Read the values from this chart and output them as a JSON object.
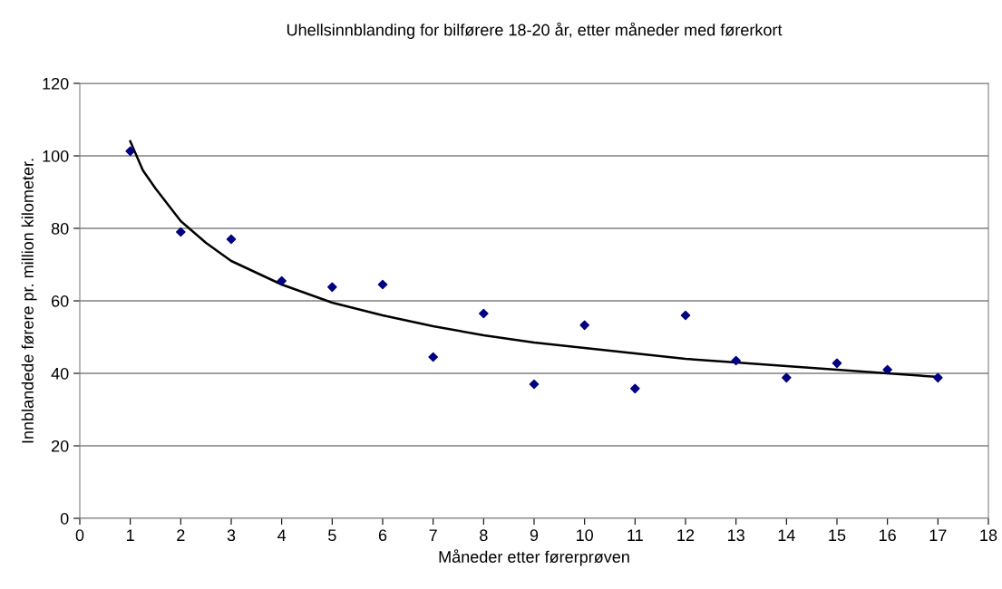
{
  "chart_data": {
    "type": "scatter",
    "title": "Uhellsinnblanding for bilførere 18-20 år, etter måneder med førerkort",
    "xlabel": "Måneder etter førerprøven",
    "ylabel": "Innblandede førere pr. million kilometer.",
    "xlim": [
      0,
      18
    ],
    "xticks": [
      0,
      1,
      2,
      3,
      4,
      5,
      6,
      7,
      8,
      9,
      10,
      11,
      12,
      13,
      14,
      15,
      16,
      17,
      18
    ],
    "ylim": [
      0,
      120
    ],
    "yticks": [
      0,
      20,
      40,
      60,
      80,
      100,
      120
    ],
    "grid": "y",
    "legend": false,
    "series": [
      {
        "marker": "diamond",
        "color": "#000080",
        "x": [
          1,
          2,
          3,
          4,
          5,
          6,
          7,
          8,
          9,
          10,
          11,
          12,
          13,
          14,
          15,
          16,
          17
        ],
        "values": [
          101.3,
          79,
          77,
          65.5,
          63.8,
          64.5,
          44.5,
          56.5,
          37,
          53.3,
          35.8,
          56,
          43.5,
          38.8,
          42.8,
          41,
          38.8
        ]
      },
      {
        "type": "line",
        "marker": "none",
        "color": "#000000",
        "line_style": "solid",
        "x": [
          1,
          1.25,
          1.5,
          2,
          2.5,
          3,
          4,
          5,
          6,
          7,
          8,
          9,
          10,
          11,
          12,
          13,
          14,
          15,
          16,
          17
        ],
        "values": [
          104,
          96,
          91,
          82,
          76,
          71,
          64.5,
          59.5,
          56,
          53,
          50.5,
          48.5,
          47,
          45.5,
          44,
          43,
          42,
          41,
          40,
          39
        ]
      }
    ]
  }
}
